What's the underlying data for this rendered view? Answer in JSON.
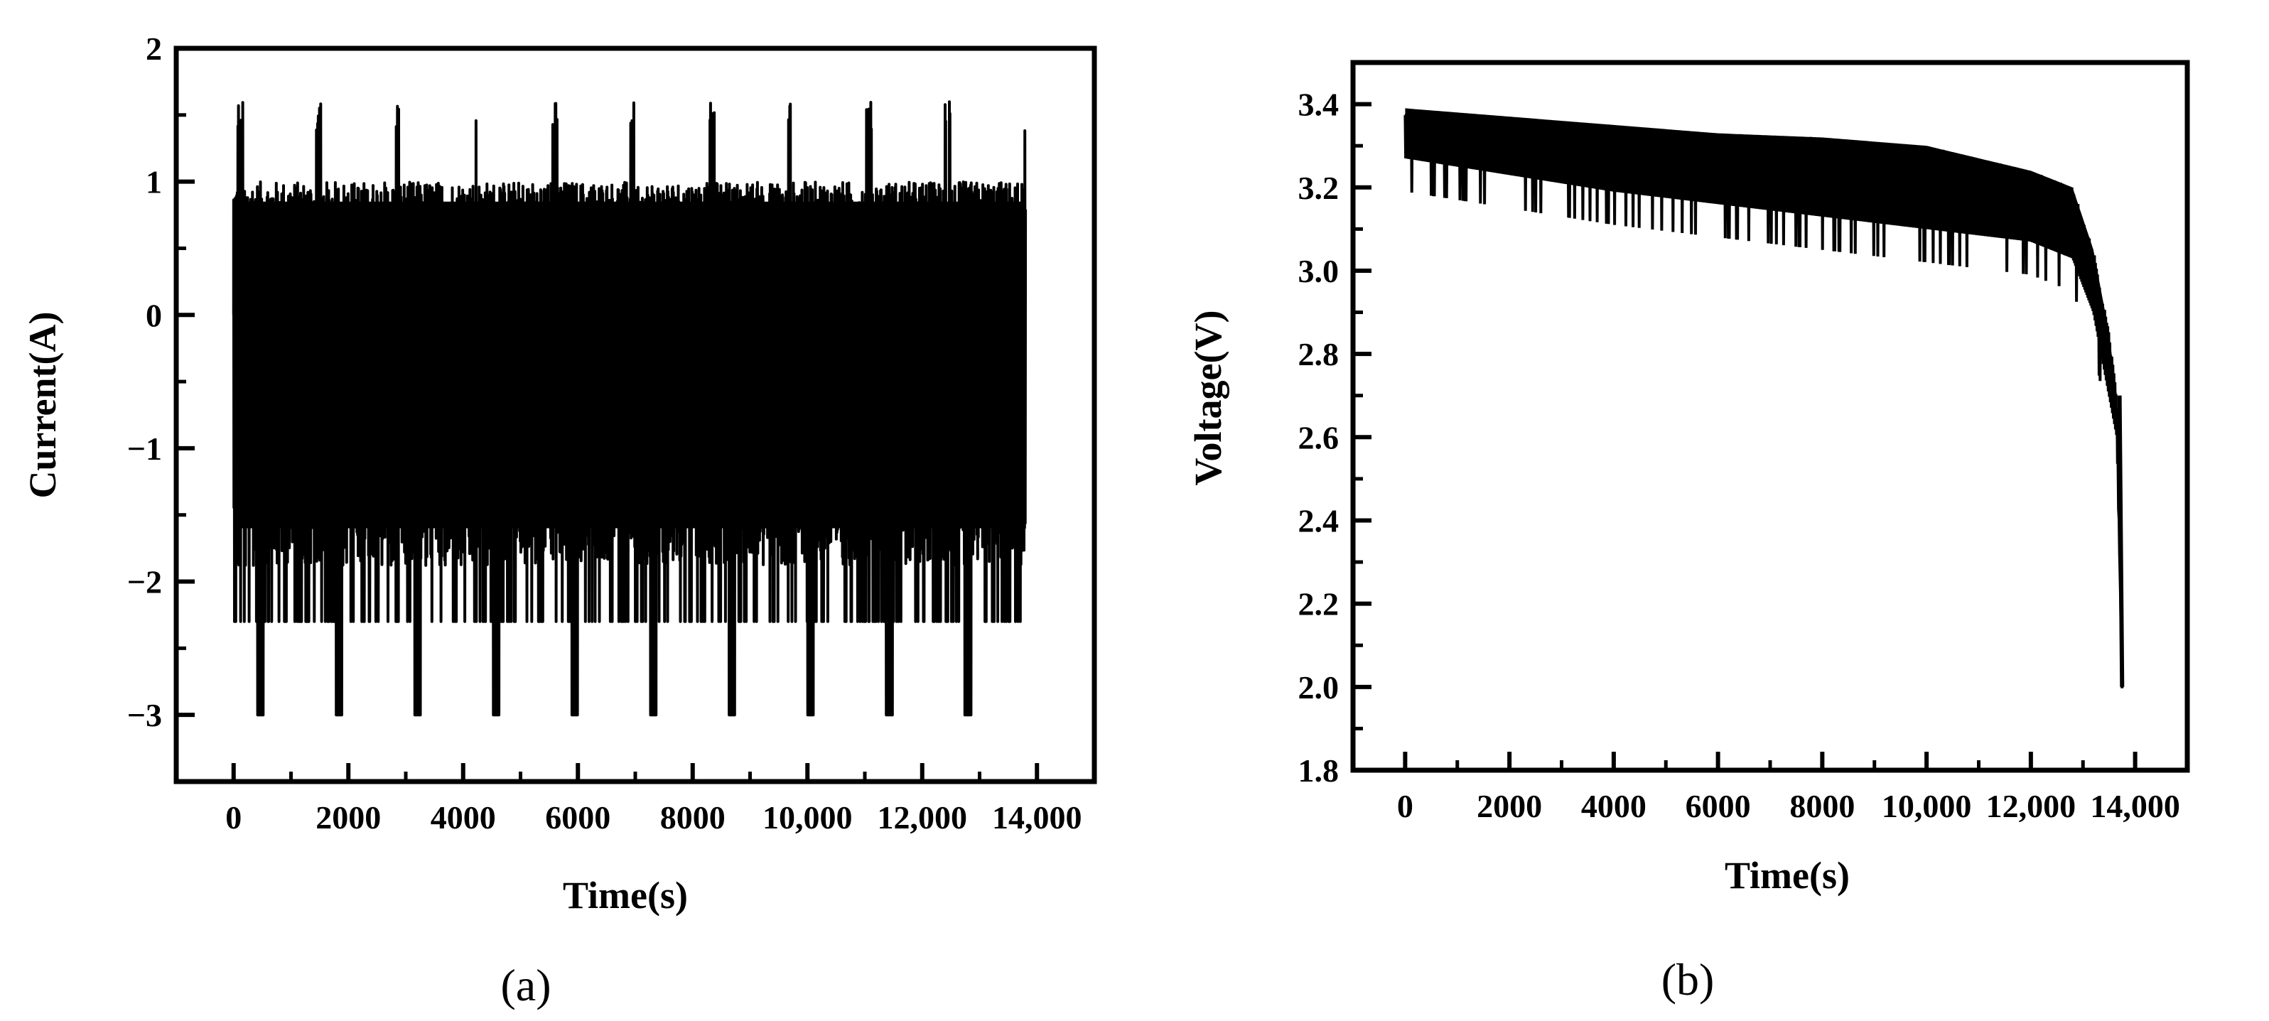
{
  "chart_data": [
    {
      "type": "line",
      "panel_label": "(a)",
      "xlabel": "Time(s)",
      "ylabel": "Current(A)",
      "xlim": [
        -1000,
        15000
      ],
      "ylim": [
        -3.5,
        2
      ],
      "x_ticks": [
        0,
        2000,
        4000,
        6000,
        8000,
        10000,
        12000,
        14000
      ],
      "x_tick_labels": [
        "0",
        "2000",
        "4000",
        "6000",
        "8000",
        "10,000",
        "12,000",
        "14,000"
      ],
      "y_ticks": [
        -3,
        -2,
        -1,
        0,
        1,
        2
      ],
      "y_tick_labels": [
        "−3",
        "−2",
        "−1",
        "0",
        "1",
        "2"
      ],
      "line_color": "#000000",
      "series": [
        {
          "description_of_pattern": "repeated dynamic current profile, 10 cycles",
          "x_range": [
            0,
            13800
          ],
          "cycle_period": 1370,
          "peak_max": 1.6,
          "peak_min": -3.0,
          "typical_upper": 1.0,
          "typical_lower": -2.0
        }
      ]
    },
    {
      "type": "line",
      "panel_label": "(b)",
      "xlabel": "Time(s)",
      "ylabel": "Voltage(V)",
      "xlim": [
        -1000,
        15000
      ],
      "ylim": [
        1.8,
        3.5
      ],
      "x_ticks": [
        0,
        2000,
        4000,
        6000,
        8000,
        10000,
        12000,
        14000
      ],
      "x_tick_labels": [
        "0",
        "2000",
        "4000",
        "6000",
        "8000",
        "10,000",
        "12,000",
        "14,000"
      ],
      "y_ticks": [
        1.8,
        2.0,
        2.2,
        2.4,
        2.6,
        2.8,
        3.0,
        3.2,
        3.4
      ],
      "y_tick_labels": [
        "1.8",
        "2.0",
        "2.2",
        "2.4",
        "2.6",
        "2.8",
        "3.0",
        "3.2",
        "3.4"
      ],
      "line_color": "#000000",
      "series": [
        {
          "x_range": [
            0,
            13750
          ],
          "upper_envelope": [
            [
              0,
              3.39
            ],
            [
              2000,
              3.37
            ],
            [
              4000,
              3.35
            ],
            [
              6000,
              3.33
            ],
            [
              8000,
              3.32
            ],
            [
              10000,
              3.3
            ],
            [
              12000,
              3.24
            ],
            [
              12800,
              3.2
            ],
            [
              13200,
              3.05
            ],
            [
              13500,
              2.85
            ],
            [
              13650,
              2.7
            ],
            [
              13750,
              2.0
            ]
          ],
          "lower_envelope": [
            [
              0,
              3.22
            ],
            [
              2000,
              3.18
            ],
            [
              4000,
              3.14
            ],
            [
              6000,
              3.11
            ],
            [
              8000,
              3.08
            ],
            [
              10000,
              3.05
            ],
            [
              12000,
              3.02
            ],
            [
              12800,
              2.98
            ],
            [
              13200,
              2.85
            ],
            [
              13500,
              2.65
            ],
            [
              13650,
              2.55
            ],
            [
              13750,
              2.0
            ]
          ],
          "final_value": 2.0
        }
      ]
    }
  ]
}
